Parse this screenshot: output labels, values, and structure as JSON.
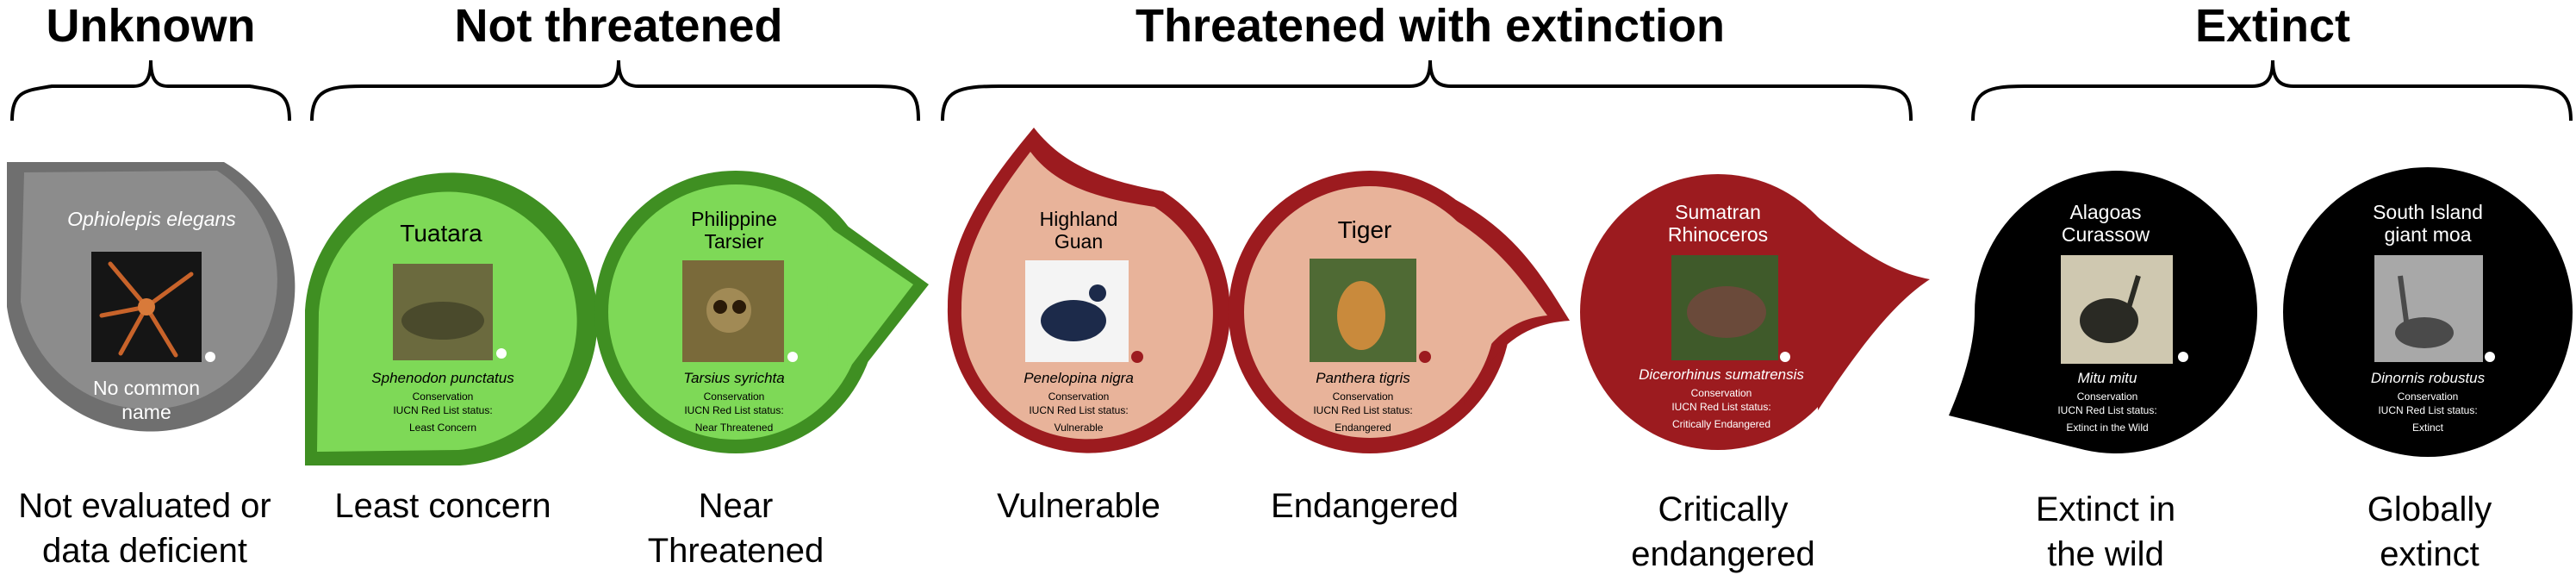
{
  "groups": [
    {
      "title": "Unknown"
    },
    {
      "title": "Not threatened"
    },
    {
      "title": "Threatened with extinction"
    },
    {
      "title": "Extinct"
    }
  ],
  "cards": [
    {
      "common_name": "Ophiolepis elegans",
      "scientific": "",
      "status_label": "",
      "status_value": "",
      "category_line1": "Not evaluated or",
      "category_line2": "data deficient",
      "no_name_line1": "No common",
      "no_name_line2": "name",
      "image": "brittle star",
      "fill": "#8c8c8c",
      "rim": "#6f6f6f",
      "text_color": "#ffffff"
    },
    {
      "common_name": "Tuatara",
      "scientific": "Sphenodon punctatus",
      "conservation": "Conservation",
      "status_label": "IUCN Red List status:",
      "status_value": "Least Concern",
      "category_line1": "Least concern",
      "category_line2": "",
      "image": "tuatara",
      "fill": "#7ed957",
      "rim": "#3f8f22",
      "text_color": "#000000"
    },
    {
      "common_name_line1": "Philippine",
      "common_name_line2": "Tarsier",
      "scientific": "Tarsius syrichta",
      "conservation": "Conservation",
      "status_label": "IUCN Red List status:",
      "status_value": "Near Threatened",
      "category_line1": "Near",
      "category_line2": "Threatened",
      "image": "tarsier",
      "fill": "#7ed957",
      "rim": "#3f8f22",
      "text_color": "#000000"
    },
    {
      "common_name_line1": "Highland",
      "common_name_line2": "Guan",
      "scientific": "Penelopina nigra",
      "conservation": "Conservation",
      "status_label": "IUCN Red List status:",
      "status_value": "Vulnerable",
      "category_line1": "Vulnerable",
      "category_line2": "",
      "image": "guan",
      "fill": "#e8b39a",
      "rim": "#9c1b1f",
      "text_color": "#000000"
    },
    {
      "common_name": "Tiger",
      "scientific": "Panthera tigris",
      "conservation": "Conservation",
      "status_label": "IUCN Red List status:",
      "status_value": "Endangered",
      "category_line1": "Endangered",
      "category_line2": "",
      "image": "tiger",
      "fill": "#e8b39a",
      "rim": "#9c1b1f",
      "text_color": "#000000"
    },
    {
      "common_name_line1": "Sumatran",
      "common_name_line2": "Rhinoceros",
      "scientific": "Dicerorhinus sumatrensis",
      "conservation": "Conservation",
      "status_label": "IUCN Red List status:",
      "status_value": "Critically Endangered",
      "category_line1": "Critically",
      "category_line2": "endangered",
      "image": "rhinoceros",
      "fill": "#9c1b1f",
      "rim": "#9c1b1f",
      "text_color": "#ffffff"
    },
    {
      "common_name_line1": "Alagoas",
      "common_name_line2": "Curassow",
      "scientific": "Mitu mitu",
      "conservation": "Conservation",
      "status_label": "IUCN Red List status:",
      "status_value": "Extinct in the Wild",
      "category_line1": "Extinct in",
      "category_line2": "the wild",
      "image": "curassow",
      "fill": "#000000",
      "rim": "#000000",
      "text_color": "#ffffff"
    },
    {
      "common_name_line1": "South Island",
      "common_name_line2": "giant moa",
      "scientific": "Dinornis robustus",
      "conservation": "Conservation",
      "status_label": "IUCN Red List status:",
      "status_value": "Extinct",
      "category_line1": "Globally",
      "category_line2": "extinct",
      "image": "moa",
      "fill": "#000000",
      "rim": "#000000",
      "text_color": "#ffffff"
    }
  ],
  "copyright_mark": "c"
}
